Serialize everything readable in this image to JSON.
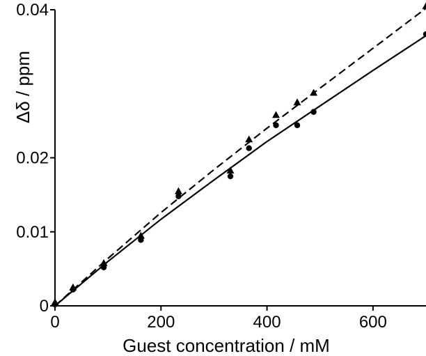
{
  "chart_data": {
    "type": "scatter",
    "xlabel": "Guest concentration / mM",
    "ylabel": "Δδ / ppm",
    "xlim": [
      0,
      700
    ],
    "ylim": [
      0,
      0.04
    ],
    "x_ticks": [
      {
        "value": 0,
        "label": "0"
      },
      {
        "value": 200,
        "label": "200"
      },
      {
        "value": 400,
        "label": "400"
      },
      {
        "value": 600,
        "label": "600"
      }
    ],
    "y_ticks": [
      {
        "value": 0,
        "label": "0"
      },
      {
        "value": 0.01,
        "label": "0.01"
      },
      {
        "value": 0.02,
        "label": "0.02"
      },
      {
        "value": 0.04,
        "label": "0.04"
      }
    ],
    "grid": false,
    "legend": "none",
    "series": [
      {
        "marker": "triangle",
        "color": "#000000",
        "fit_line": "dashed",
        "x": [
          0,
          34,
          92,
          162,
          233,
          331,
          366,
          417,
          457,
          488,
          700
        ],
        "y": [
          0.0005,
          0.0025,
          0.0058,
          0.0095,
          0.0155,
          0.0183,
          0.0225,
          0.0258,
          0.0275,
          0.0288,
          0.0405
        ]
      },
      {
        "marker": "circle",
        "color": "#000000",
        "fit_line": "solid",
        "x": [
          0,
          34,
          92,
          162,
          233,
          331,
          366,
          417,
          457,
          488,
          700
        ],
        "y": [
          0.0002,
          0.0022,
          0.0052,
          0.0089,
          0.0148,
          0.0175,
          0.0213,
          0.0244,
          0.0244,
          0.0262,
          0.0367
        ]
      }
    ],
    "fit_curves": [
      {
        "style": "dashed",
        "x": [
          0,
          100,
          200,
          300,
          400,
          500,
          600,
          700
        ],
        "y": [
          0,
          0.0064,
          0.0126,
          0.0184,
          0.024,
          0.0294,
          0.0348,
          0.0402
        ]
      },
      {
        "style": "solid",
        "x": [
          0,
          100,
          200,
          300,
          400,
          500,
          600,
          700
        ],
        "y": [
          0,
          0.006,
          0.0117,
          0.017,
          0.0222,
          0.027,
          0.0318,
          0.0365
        ]
      }
    ]
  }
}
